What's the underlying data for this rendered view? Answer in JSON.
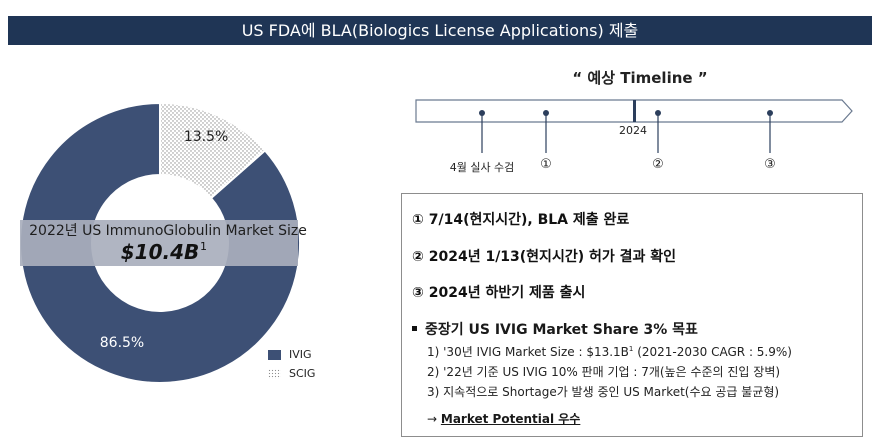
{
  "header": {
    "title": "US FDA에 BLA(Biologics License Applications) 제출"
  },
  "chart_data": {
    "type": "pie",
    "title": "2022년 US ImmunoGlobulin Market Size",
    "center_value": "$10.4B",
    "center_footnote": "1",
    "slices": [
      {
        "label": "IVIG",
        "value": 86.5,
        "value_label": "86.5%",
        "color": "#3d5075"
      },
      {
        "label": "SCIG",
        "value": 13.5,
        "value_label": "13.5%",
        "color": "#ffffff",
        "pattern": "dotted"
      }
    ],
    "legend_position": "bottom-right"
  },
  "timeline": {
    "title": "“ 예상 Timeline ”",
    "year_marker": "2024",
    "points": [
      {
        "label": "4월 실사 수검"
      },
      {
        "label": "①"
      },
      {
        "label": "②"
      },
      {
        "label": "③"
      }
    ]
  },
  "milestones": {
    "items": [
      "① 7/14(현지시간), BLA 제출 완료",
      "② 2024년 1/13(현지시간) 허가 결과 확인",
      "③ 2024년 하반기 제품 출시"
    ],
    "goal_title": "중장기 US IVIG Market Share 3% 목표",
    "goal_points": [
      {
        "text": "1) '30년 IVIG Market Size : $13.1B",
        "sup": "1",
        "tail": " (2021-2030 CAGR : 5.9%)"
      },
      {
        "text": "2) '22년 기준 US IVIG 10% 판매 기업 : 7개(높은 수준의 진입 장벽)",
        "sup": "",
        "tail": ""
      },
      {
        "text": "3) 지속적으로 Shortage가 발생 중인 US Market(수요 공급 불균형)",
        "sup": "",
        "tail": ""
      }
    ],
    "conclusion_arrow": "→",
    "conclusion": "Market Potential 우수"
  }
}
